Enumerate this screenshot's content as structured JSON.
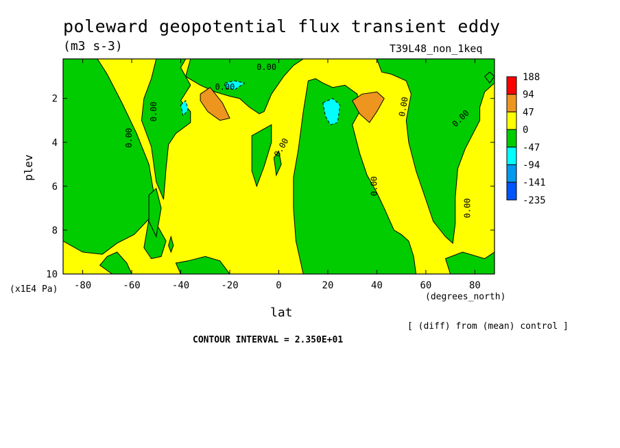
{
  "chart_data": {
    "type": "heatmap",
    "title": "poleward geopotential flux transient eddy",
    "units": "(m3 s-3)",
    "run_label": "T39L48_non_1keq",
    "xlabel": "lat",
    "x_unit": "(degrees_north)",
    "ylabel": "plev",
    "y_unit": "(x1E4 Pa)",
    "xlim": [
      -88,
      88
    ],
    "ylim": [
      10,
      0.2
    ],
    "x_ticks": [
      {
        "value": -80,
        "label": "-80"
      },
      {
        "value": -60,
        "label": "-60"
      },
      {
        "value": -40,
        "label": "-40"
      },
      {
        "value": -20,
        "label": "-20"
      },
      {
        "value": 0,
        "label": "0"
      },
      {
        "value": 20,
        "label": "20"
      },
      {
        "value": 40,
        "label": "40"
      },
      {
        "value": 60,
        "label": "60"
      },
      {
        "value": 80,
        "label": "80"
      }
    ],
    "y_ticks": [
      {
        "value": 2,
        "label": "2"
      },
      {
        "value": 4,
        "label": "4"
      },
      {
        "value": 6,
        "label": "6"
      },
      {
        "value": 8,
        "label": "8"
      },
      {
        "value": 10,
        "label": "10"
      }
    ],
    "colorbar": {
      "labels": [
        "188",
        "94",
        "47",
        "0",
        "-47",
        "-94",
        "-141",
        "-235"
      ],
      "colors": [
        "#ff0000",
        "#ee9520",
        "#ffff00",
        "#00cc00",
        "#00ffff",
        "#0099ee",
        "#0055ff"
      ]
    },
    "contour_labels": [
      "0.00",
      "0.00",
      "0.00",
      "0.00",
      "0.00",
      "0.00",
      "0.00",
      "0.00",
      "0.00"
    ],
    "note_diff": "[ (diff) from (mean) control ]",
    "contour_interval": "CONTOUR INTERVAL = 2.350E+01",
    "regions": [
      {
        "sign": "positive",
        "color": "#ffff00",
        "polygon": [
          [
            -88,
            0.2
          ],
          [
            88,
            0.2
          ],
          [
            88,
            10
          ],
          [
            -88,
            10
          ]
        ]
      },
      {
        "sign": "negative",
        "color": "#00cc00",
        "polygon": [
          [
            -88,
            0.2
          ],
          [
            -74,
            0.2
          ],
          [
            -70,
            0.9
          ],
          [
            -64,
            2.2
          ],
          [
            -58,
            3.6
          ],
          [
            -53,
            5.0
          ],
          [
            -51,
            6.3
          ],
          [
            -53,
            7.5
          ],
          [
            -59,
            8.2
          ],
          [
            -66,
            8.6
          ],
          [
            -72,
            9.1
          ],
          [
            -80,
            9.0
          ],
          [
            -88,
            8.5
          ]
        ]
      },
      {
        "sign": "negative",
        "color": "#00cc00",
        "polygon": [
          [
            -50,
            0.2
          ],
          [
            -38,
            0.2
          ],
          [
            -40,
            0.6
          ],
          [
            -36,
            1.4
          ],
          [
            -40,
            2.1
          ],
          [
            -36,
            2.6
          ],
          [
            -36,
            3.1
          ],
          [
            -42,
            3.6
          ],
          [
            -45,
            4.1
          ],
          [
            -46,
            5.2
          ],
          [
            -47,
            6.6
          ],
          [
            -50,
            5.8
          ],
          [
            -52,
            4.2
          ],
          [
            -56,
            3.0
          ],
          [
            -55,
            2.0
          ],
          [
            -52,
            1.1
          ]
        ]
      },
      {
        "sign": "negative",
        "color": "#00cc00",
        "polygon": [
          [
            -36,
            0.2
          ],
          [
            10,
            0.2
          ],
          [
            6,
            0.5
          ],
          [
            2,
            1.0
          ],
          [
            -3,
            1.8
          ],
          [
            -6,
            2.6
          ],
          [
            -8,
            2.7
          ],
          [
            -12,
            2.4
          ],
          [
            -16,
            2.0
          ],
          [
            -20,
            1.9
          ],
          [
            -26,
            1.7
          ],
          [
            -32,
            1.4
          ],
          [
            -38,
            1.0
          ]
        ]
      },
      {
        "sign": "negative",
        "color": "#00cc00",
        "polygon": [
          [
            -11,
            3.7
          ],
          [
            -3,
            3.2
          ],
          [
            -3,
            4.0
          ],
          [
            -6,
            5.1
          ],
          [
            -9,
            6.0
          ],
          [
            -11,
            5.3
          ]
        ]
      },
      {
        "sign": "negative",
        "color": "#00cc00",
        "polygon": [
          [
            -2,
            4.7
          ],
          [
            0,
            4.4
          ],
          [
            1,
            5.0
          ],
          [
            -1,
            5.5
          ]
        ]
      },
      {
        "sign": "negative",
        "color": "#00cc00",
        "polygon": [
          [
            12,
            1.2
          ],
          [
            15,
            1.1
          ],
          [
            18,
            1.3
          ],
          [
            22,
            1.5
          ],
          [
            27,
            1.4
          ],
          [
            32,
            1.8
          ],
          [
            33,
            2.6
          ],
          [
            30,
            3.2
          ],
          [
            33,
            4.5
          ],
          [
            36,
            5.5
          ],
          [
            40,
            6.3
          ],
          [
            43,
            7.0
          ],
          [
            45,
            7.5
          ],
          [
            47,
            8.0
          ],
          [
            50,
            8.2
          ],
          [
            53,
            8.5
          ],
          [
            55,
            9.2
          ],
          [
            56,
            10
          ],
          [
            10,
            10
          ],
          [
            7,
            8.5
          ],
          [
            6,
            7.0
          ],
          [
            6,
            5.6
          ],
          [
            8,
            4.3
          ],
          [
            10,
            2.6
          ]
        ]
      },
      {
        "sign": "negative",
        "color": "#00cc00",
        "polygon": [
          [
            40,
            0.2
          ],
          [
            88,
            0.2
          ],
          [
            88,
            1.3
          ],
          [
            84,
            1.7
          ],
          [
            82,
            2.4
          ],
          [
            82,
            3.0
          ],
          [
            76,
            4.3
          ],
          [
            73,
            5.2
          ],
          [
            72,
            6.5
          ],
          [
            72,
            7.7
          ],
          [
            71,
            8.6
          ],
          [
            68,
            8.3
          ],
          [
            63,
            7.6
          ],
          [
            60,
            6.6
          ],
          [
            56,
            5.3
          ],
          [
            53,
            4.0
          ],
          [
            52,
            3.0
          ],
          [
            54,
            1.8
          ],
          [
            52,
            1.2
          ],
          [
            46,
            0.9
          ],
          [
            42,
            0.8
          ]
        ]
      },
      {
        "sign": "negative",
        "color": "#00cc00",
        "polygon": [
          [
            -68,
            10
          ],
          [
            -73,
            9.6
          ],
          [
            -70,
            9.2
          ],
          [
            -66,
            9.0
          ],
          [
            -62,
            9.5
          ],
          [
            -60,
            10
          ]
        ]
      },
      {
        "sign": "negative",
        "color": "#00cc00",
        "polygon": [
          [
            -55,
            8.8
          ],
          [
            -53,
            7.5
          ],
          [
            -49,
            7.9
          ],
          [
            -46,
            8.5
          ],
          [
            -48,
            9.2
          ],
          [
            -52,
            9.3
          ]
        ]
      },
      {
        "sign": "negative",
        "color": "#00cc00",
        "polygon": [
          [
            -40,
            10
          ],
          [
            -42,
            9.5
          ],
          [
            -37,
            9.4
          ],
          [
            -30,
            9.2
          ],
          [
            -24,
            9.4
          ],
          [
            -20,
            10
          ]
        ]
      },
      {
        "sign": "negative",
        "color": "#00cc00",
        "polygon": [
          [
            -53,
            6.4
          ],
          [
            -50,
            6.1
          ],
          [
            -48,
            7.0
          ],
          [
            -50,
            8.3
          ],
          [
            -53,
            7.6
          ]
        ]
      },
      {
        "sign": "negative",
        "color": "#00cc00",
        "polygon": [
          [
            70,
            10
          ],
          [
            68,
            9.3
          ],
          [
            75,
            9.0
          ],
          [
            84,
            9.3
          ],
          [
            88,
            9.0
          ],
          [
            88,
            10
          ]
        ]
      },
      {
        "sign": "negative",
        "color": "#00cc00",
        "polygon": [
          [
            -45,
            8.7
          ],
          [
            -44,
            8.3
          ],
          [
            -43,
            8.7
          ],
          [
            -44,
            9.0
          ]
        ]
      },
      {
        "sign": "negative",
        "color": "#00cc00",
        "polygon": [
          [
            84,
            1.0
          ],
          [
            86,
            0.8
          ],
          [
            88,
            1.0
          ],
          [
            86,
            1.3
          ]
        ]
      },
      {
        "sign": "positive",
        "color": "#ee9520",
        "polygon": [
          [
            -32,
            1.8
          ],
          [
            -28,
            1.5
          ],
          [
            -23,
            2.2
          ],
          [
            -20,
            2.9
          ],
          [
            -24,
            3.0
          ],
          [
            -29,
            2.6
          ],
          [
            -32,
            2.1
          ]
        ]
      },
      {
        "sign": "positive",
        "color": "#ee9520",
        "polygon": [
          [
            30,
            2.1
          ],
          [
            34,
            1.8
          ],
          [
            40,
            1.7
          ],
          [
            43,
            2.0
          ],
          [
            40,
            2.6
          ],
          [
            37,
            3.1
          ],
          [
            33,
            2.7
          ]
        ]
      },
      {
        "sign": "negative",
        "color": "#00ffff",
        "polygon": [
          [
            -22,
            1.3
          ],
          [
            -18,
            1.2
          ],
          [
            -14,
            1.3
          ],
          [
            -18,
            1.6
          ],
          [
            -22,
            1.5
          ]
        ]
      },
      {
        "sign": "negative",
        "color": "#00ffff",
        "polygon": [
          [
            -40,
            2.3
          ],
          [
            -38,
            2.1
          ],
          [
            -37,
            2.5
          ],
          [
            -39,
            2.8
          ]
        ]
      },
      {
        "sign": "negative",
        "color": "#00ffff",
        "polygon": [
          [
            18,
            2.2
          ],
          [
            22,
            2.0
          ],
          [
            25,
            2.3
          ],
          [
            24,
            3.1
          ],
          [
            21,
            3.2
          ],
          [
            19,
            2.8
          ]
        ]
      }
    ]
  }
}
